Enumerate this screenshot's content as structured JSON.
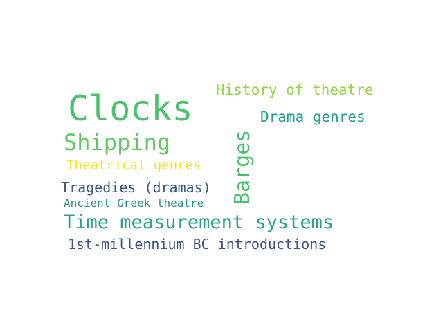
{
  "words": [
    {
      "text": "Clocks",
      "color": "#4cc16e"
    },
    {
      "text": "Shipping",
      "color": "#5ec962"
    },
    {
      "text": "Time measurement systems",
      "color": "#26a388"
    },
    {
      "text": "History of theatre",
      "color": "#93d741"
    },
    {
      "text": "Drama genres",
      "color": "#25a18e"
    },
    {
      "text": "Theatrical genres",
      "color": "#f1e51d"
    },
    {
      "text": "Tragedies (dramas)",
      "color": "#38598c"
    },
    {
      "text": "Ancient Greek theatre",
      "color": "#21908d"
    },
    {
      "text": "1st-millennium BC introductions",
      "color": "#3b528b"
    },
    {
      "text": "Barges",
      "color": "#48c16e"
    }
  ]
}
